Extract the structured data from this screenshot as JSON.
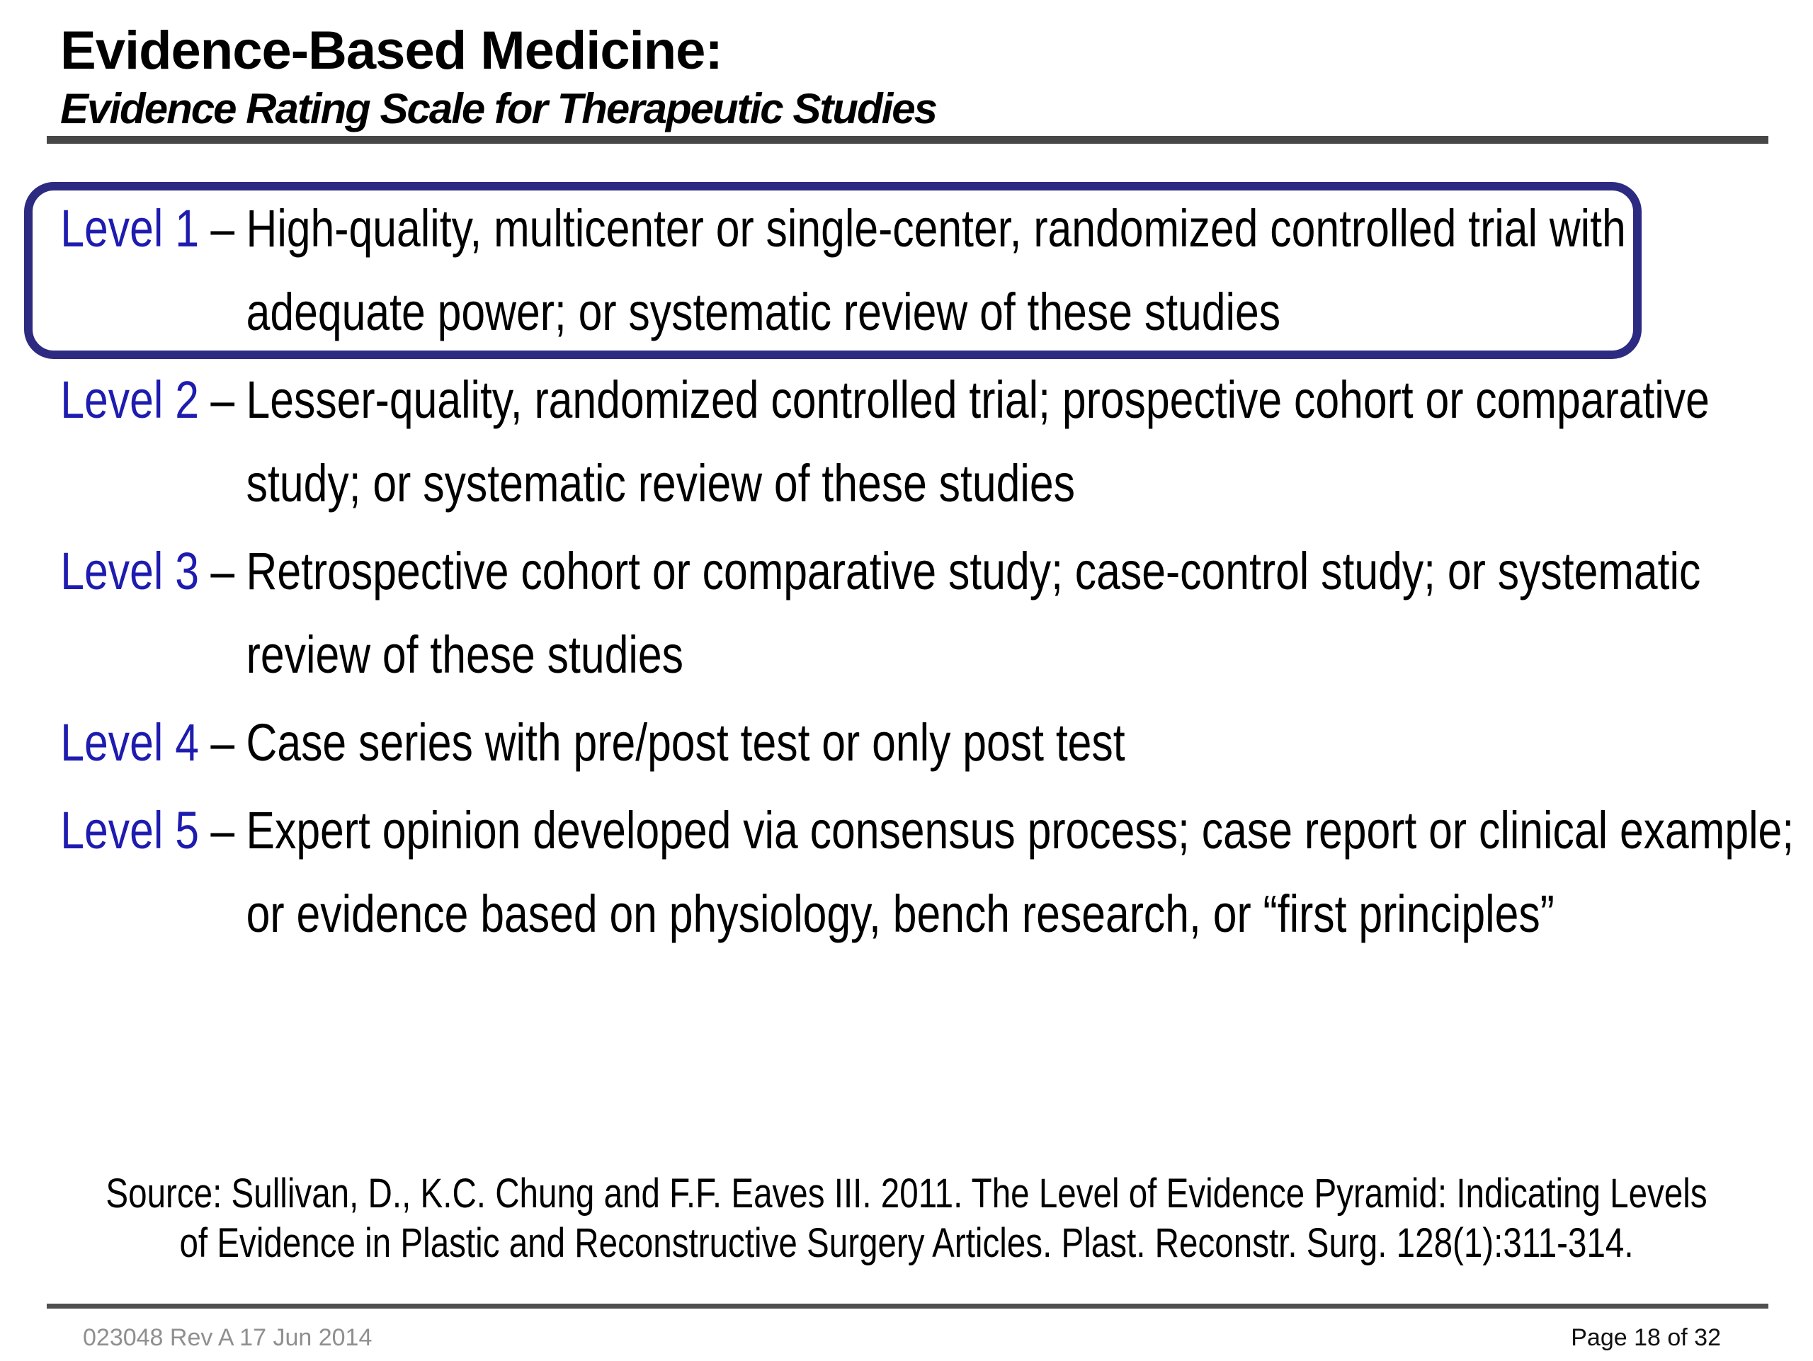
{
  "header": {
    "title": "Evidence-Based Medicine:",
    "subtitle": "Evidence Rating Scale for Therapeutic Studies"
  },
  "separator": "–",
  "levels": [
    {
      "label": "Level 1",
      "highlighted": true,
      "lines": [
        "High-quality, multicenter or single-center, randomized controlled trial with",
        "adequate power; or systematic review of these studies"
      ]
    },
    {
      "label": "Level 2",
      "highlighted": false,
      "lines": [
        "Lesser-quality, randomized controlled trial; prospective cohort or comparative",
        "study; or systematic review of these studies"
      ]
    },
    {
      "label": "Level 3",
      "highlighted": false,
      "lines": [
        "Retrospective cohort or comparative study; case-control study; or systematic",
        "review of these studies"
      ]
    },
    {
      "label": "Level 4",
      "highlighted": false,
      "lines": [
        "Case series with pre/post test or only post test"
      ]
    },
    {
      "label": "Level 5",
      "highlighted": false,
      "lines": [
        "Expert opinion developed via consensus process; case report or clinical example;",
        "or evidence based on physiology, bench research, or “first principles”"
      ]
    }
  ],
  "source": {
    "lines": [
      "Source: Sullivan, D., K.C. Chung and F.F. Eaves III. 2011. The Level of Evidence Pyramid: Indicating Levels",
      "of Evidence in Plastic and Reconstructive Surgery Articles. Plast. Reconstr. Surg. 128(1):311-314."
    ]
  },
  "footer": {
    "doc_ref": "023048 Rev A 17 Jun 2014",
    "page_indicator": "Page 18 of 32"
  },
  "colors": {
    "accent_blue": "#1e1caf",
    "box_border": "#2d2a82",
    "rule_dark": "#474747",
    "footer_rule": "#4f4f4f",
    "muted": "#8f8f8f"
  }
}
